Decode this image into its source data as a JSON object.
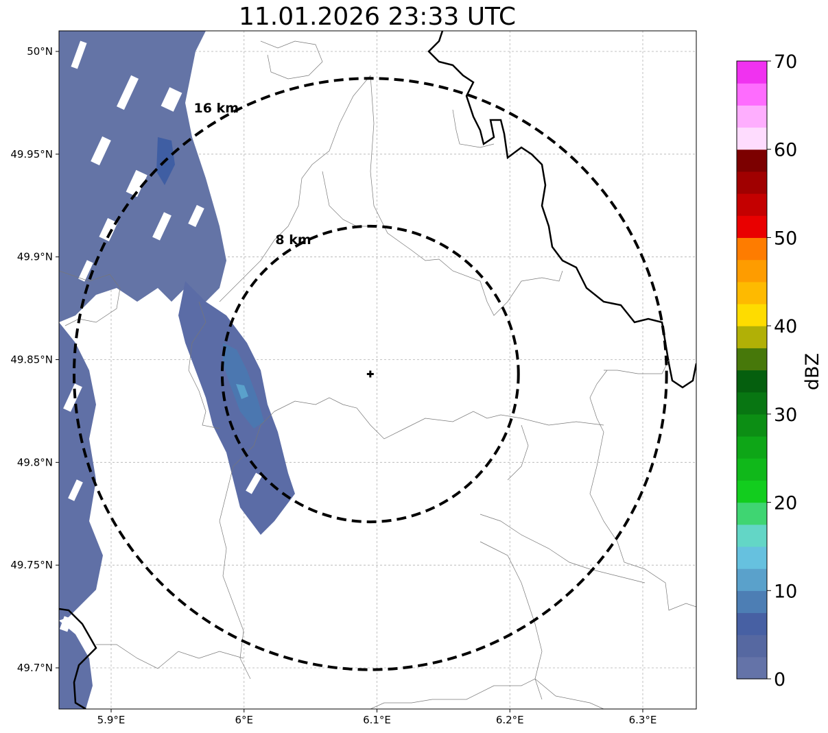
{
  "title": "11.01.2026 23:33 UTC",
  "map": {
    "lon_range": [
      5.86,
      6.34
    ],
    "lat_range": [
      49.68,
      50.01
    ],
    "x_ticks": [
      {
        "value": 5.9,
        "label": "5.9°E"
      },
      {
        "value": 6.0,
        "label": "6°E"
      },
      {
        "value": 6.1,
        "label": "6.1°E"
      },
      {
        "value": 6.2,
        "label": "6.2°E"
      },
      {
        "value": 6.3,
        "label": "6.3°E"
      }
    ],
    "y_ticks": [
      {
        "value": 50.0,
        "label": "50°N"
      },
      {
        "value": 49.95,
        "label": "49.95°N"
      },
      {
        "value": 49.9,
        "label": "49.9°N"
      },
      {
        "value": 49.85,
        "label": "49.85°N"
      },
      {
        "value": 49.8,
        "label": "49.8°N"
      },
      {
        "value": 49.75,
        "label": "49.75°N"
      },
      {
        "value": 49.7,
        "label": "49.7°N"
      }
    ],
    "grid": true,
    "radar_site": {
      "lon": 6.095,
      "lat": 49.843
    },
    "range_rings": [
      {
        "label": "8 km",
        "radius_km": 8
      },
      {
        "label": "16 km",
        "radius_km": 16
      }
    ]
  },
  "colorbar": {
    "label": "dBZ",
    "min": 0,
    "max": 70,
    "tick_labels": [
      "0",
      "10",
      "20",
      "30",
      "40",
      "50",
      "60",
      "70"
    ],
    "colors": [
      "#6473a8",
      "#5668a1",
      "#4760a3",
      "#4d7eb4",
      "#5aa1cb",
      "#66c1df",
      "#63d6c6",
      "#3fd572",
      "#12cd1e",
      "#10b81a",
      "#0ea617",
      "#0c8e14",
      "#087612",
      "#055f0e",
      "#47780a",
      "#b1b006",
      "#fedc00",
      "#feba00",
      "#fe9c00",
      "#fe7c00",
      "#e90000",
      "#c40000",
      "#a00000",
      "#7c0000",
      "#fedcfe",
      "#feaefe",
      "#fe6cfe",
      "#f032f0"
    ]
  }
}
